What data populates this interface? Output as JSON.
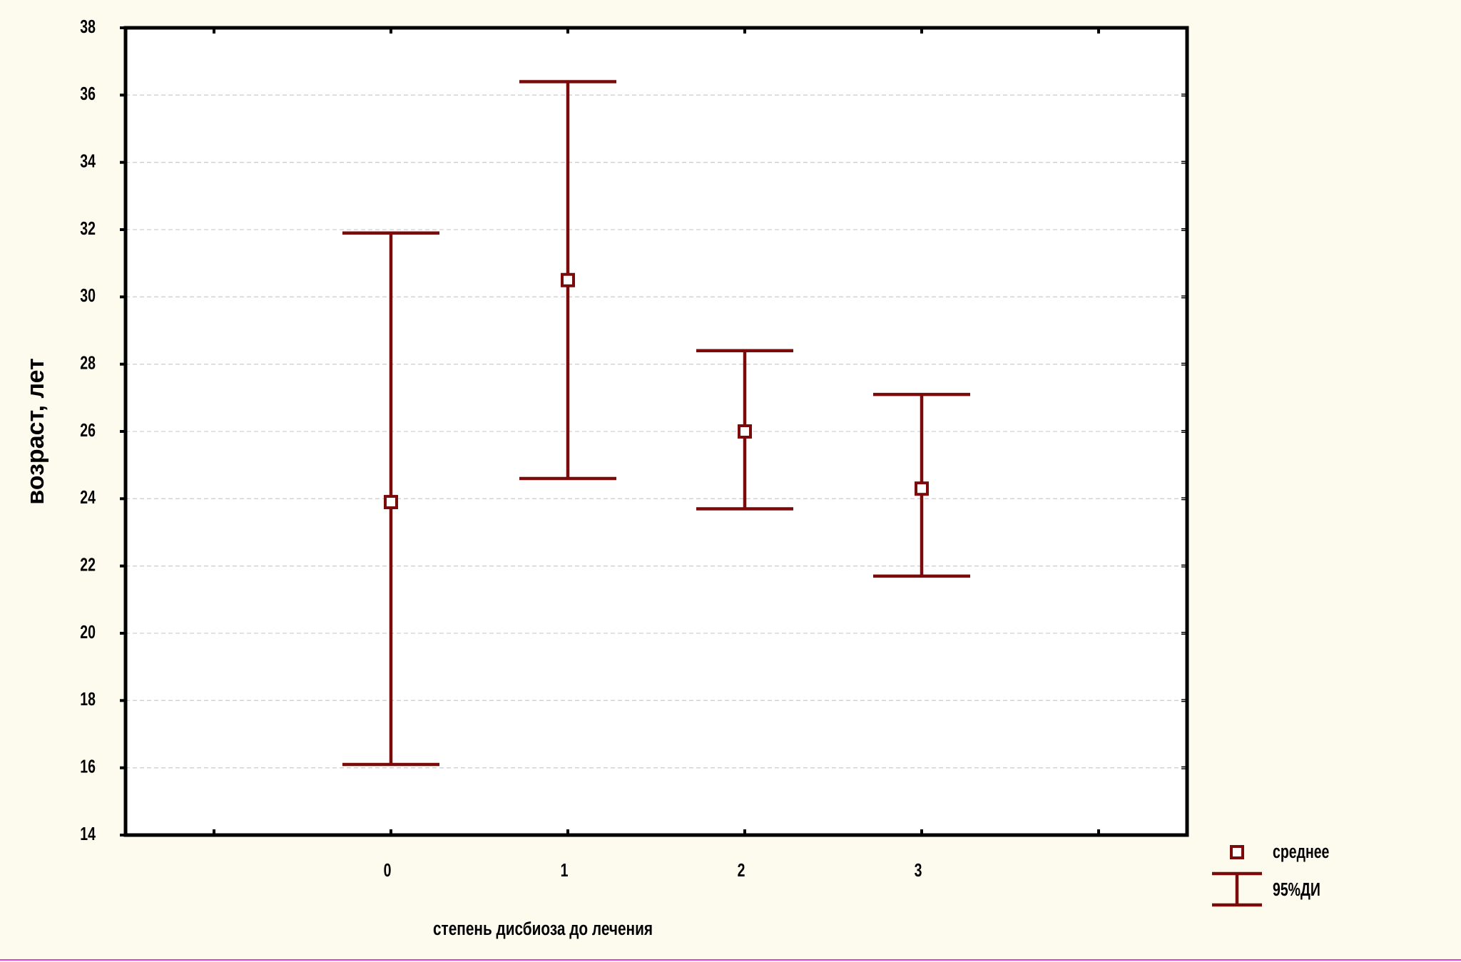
{
  "chart_data": {
    "type": "errorbar",
    "x_label": "степень дисбиоза до лечения",
    "y_label": "возраст, лет",
    "categories": [
      null,
      "0",
      "1",
      "2",
      "3",
      null
    ],
    "series": [
      {
        "name": "среднее",
        "color": "#7b0a0a",
        "values": [
          null,
          23.9,
          30.5,
          26.0,
          24.3,
          null
        ],
        "ci_low": [
          null,
          16.1,
          24.6,
          23.7,
          21.7,
          null
        ],
        "ci_high": [
          null,
          31.9,
          36.4,
          28.4,
          27.1,
          null
        ]
      }
    ],
    "ci_label": "95%ДИ",
    "ylim": [
      14,
      38
    ],
    "yticks": [
      14,
      16,
      18,
      20,
      22,
      24,
      26,
      28,
      30,
      32,
      34,
      36,
      38
    ],
    "grid": true
  }
}
